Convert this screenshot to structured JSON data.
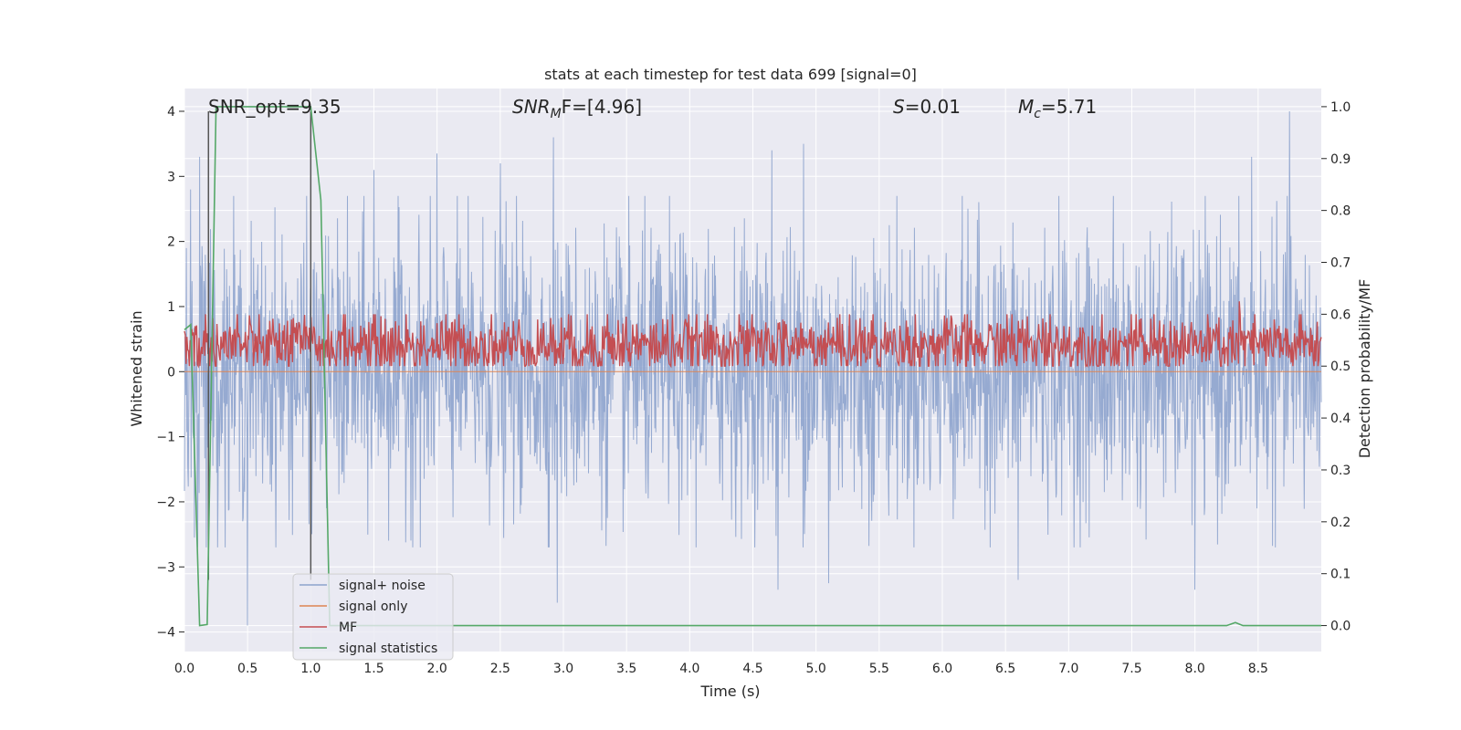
{
  "chart_data": {
    "type": "line",
    "title": "stats at each timestep for test data 699 [signal=0]",
    "xlabel": "Time (s)",
    "ylabel": "Whitened strain",
    "y2label": "Detection probability/MF",
    "xlim": [
      0,
      9.0
    ],
    "ylim": [
      -4.3,
      4.35
    ],
    "y2lim": [
      -0.05,
      1.035
    ],
    "x_ticks": [
      0.0,
      0.5,
      1.0,
      1.5,
      2.0,
      2.5,
      3.0,
      3.5,
      4.0,
      4.5,
      5.0,
      5.5,
      6.0,
      6.5,
      7.0,
      7.5,
      8.0,
      8.5
    ],
    "x_tick_labels": [
      "0.0",
      "0.5",
      "1.0",
      "1.5",
      "2.0",
      "2.5",
      "3.0",
      "3.5",
      "4.0",
      "4.5",
      "5.0",
      "5.5",
      "6.0",
      "6.5",
      "7.0",
      "7.5",
      "8.0",
      "8.5"
    ],
    "y_ticks": [
      -4,
      -3,
      -2,
      -1,
      0,
      1,
      2,
      3,
      4
    ],
    "y_tick_labels": [
      "−4",
      "−3",
      "−2",
      "−1",
      "0",
      "1",
      "2",
      "3",
      "4"
    ],
    "y2_ticks": [
      0.0,
      0.1,
      0.2,
      0.3,
      0.4,
      0.5,
      0.6,
      0.7,
      0.8,
      0.9,
      1.0
    ],
    "y2_tick_labels": [
      "0.0",
      "0.1",
      "0.2",
      "0.3",
      "0.4",
      "0.5",
      "0.6",
      "0.7",
      "0.8",
      "0.9",
      "1.0"
    ],
    "grid": true,
    "legend_position": "lower-left",
    "annotations": {
      "snr_opt": "SNR_opt=9.35",
      "snr_mf_sym": "SNR",
      "snr_mf_sub": "M",
      "snr_mf_rest": "F=[4.96]",
      "s_sym": "S",
      "s_val": "=0.01",
      "mc_sym": "M",
      "mc_sub": "c",
      "mc_val": "=5.71"
    },
    "vertical_markers": [
      0.19,
      1.0
    ],
    "series": [
      {
        "name": "signal+ noise",
        "color": "#8da3cd",
        "axis": "left",
        "kind": "noise",
        "description_values": {
          "center": 0.0,
          "typical_abs": 1.6,
          "max": 4.0,
          "min": -3.9
        },
        "extremes": [
          [
            0.05,
            2.8
          ],
          [
            0.12,
            3.3
          ],
          [
            0.5,
            -3.9
          ],
          [
            1.5,
            3.1
          ],
          [
            2.0,
            3.35
          ],
          [
            2.5,
            3.2
          ],
          [
            2.92,
            3.6
          ],
          [
            2.95,
            -3.55
          ],
          [
            4.65,
            3.4
          ],
          [
            4.7,
            -3.35
          ],
          [
            4.9,
            3.5
          ],
          [
            5.1,
            -3.25
          ],
          [
            6.6,
            -3.2
          ],
          [
            8.0,
            -3.35
          ],
          [
            8.45,
            3.3
          ],
          [
            8.75,
            4.0
          ]
        ]
      },
      {
        "name": "signal only",
        "color": "#dd8452",
        "axis": "left",
        "kind": "flat",
        "y": [
          0,
          0
        ]
      },
      {
        "name": "MF",
        "color": "#c44e52",
        "axis": "right",
        "kind": "mf",
        "description_values": {
          "baseline": 0.54,
          "spread": 0.03
        },
        "peaks": [
          [
            0.42,
            0.6
          ],
          [
            0.85,
            0.59
          ],
          [
            3.35,
            0.6
          ],
          [
            5.55,
            0.585
          ],
          [
            6.55,
            0.6
          ],
          [
            6.85,
            0.6
          ],
          [
            8.35,
            0.625
          ]
        ]
      },
      {
        "name": "signal statistics",
        "color": "#55a868",
        "axis": "right",
        "kind": "line",
        "x": [
          0.0,
          0.05,
          0.12,
          0.18,
          0.25,
          0.3,
          1.0,
          1.08,
          1.15,
          1.25,
          8.25,
          8.32,
          8.38,
          9.0
        ],
        "y": [
          0.57,
          0.58,
          0.0,
          0.002,
          1.0,
          1.0,
          1.0,
          0.82,
          0.0,
          0.0,
          0.0,
          0.006,
          0.0,
          0.0
        ]
      }
    ]
  }
}
